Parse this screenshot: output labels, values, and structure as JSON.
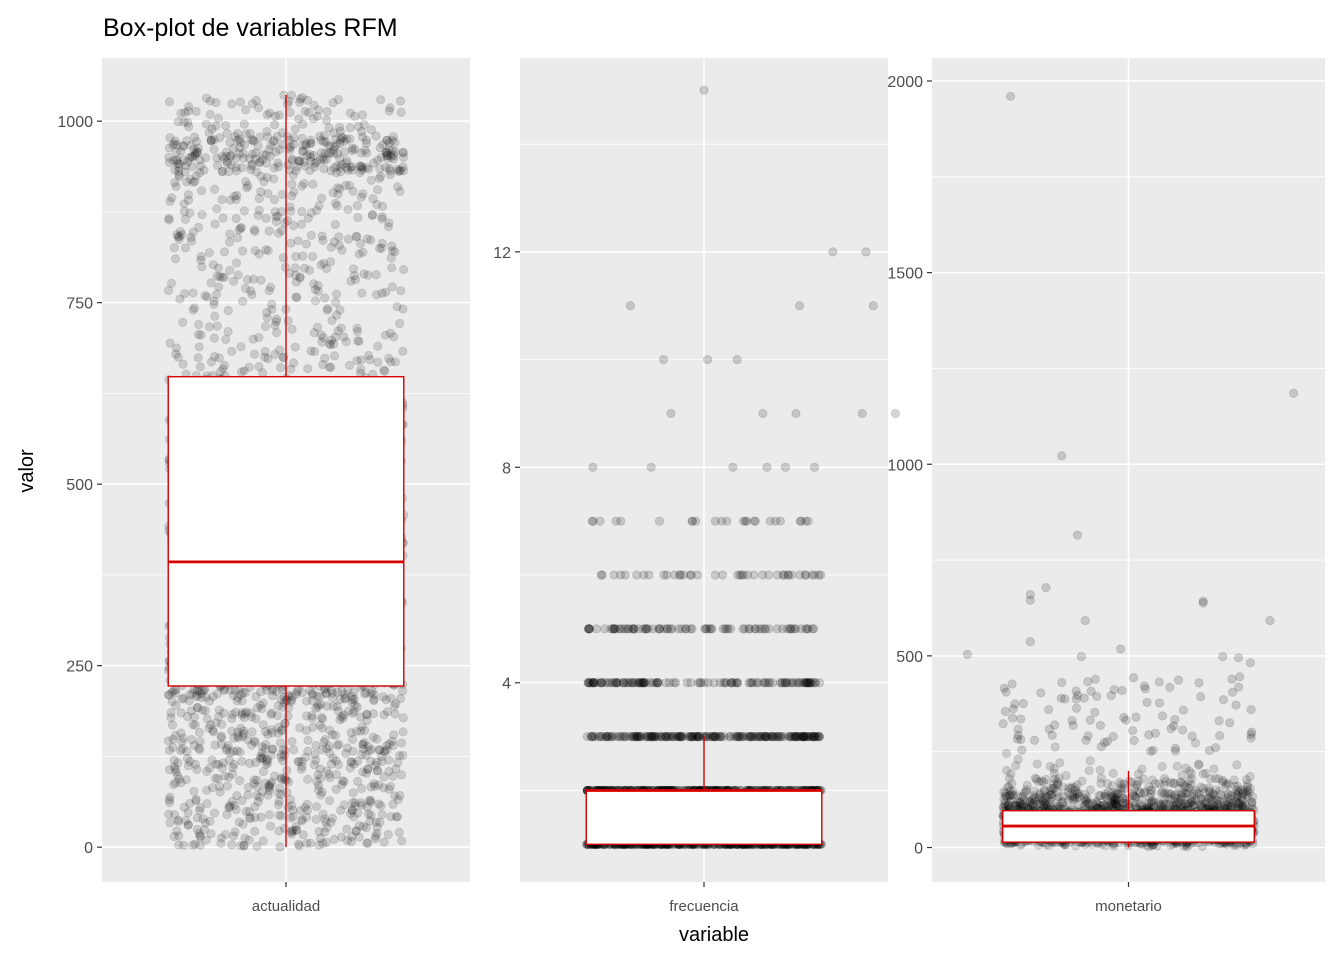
{
  "chart_data": {
    "type": "box",
    "title": "Box-plot de variables RFM",
    "xlabel": "variable",
    "ylabel": "valor",
    "colors": {
      "panel_bg": "#ebebeb",
      "grid": "#ffffff",
      "box_stroke": "#d40000",
      "points": "#000000",
      "tick_text": "#4d4d4d"
    },
    "panels": [
      {
        "category": "actualidad",
        "ylim": [
          -48,
          1087
        ],
        "yticks": [
          0,
          250,
          500,
          750,
          1000
        ],
        "box": {
          "whisker_low": 0,
          "q1": 222,
          "median": 393,
          "q3": 648,
          "whisker_high": 1036
        },
        "points_description": "dense jittered scatter spanning 0 to 1036",
        "outliers": []
      },
      {
        "category": "frecuencia",
        "ylim": [
          0.3,
          15.6
        ],
        "yticks": [
          4,
          8,
          12
        ],
        "box": {
          "whisker_low": 1,
          "q1": 1,
          "median": 2,
          "q3": 2,
          "whisker_high": 3
        },
        "points_description": "integer-valued jittered scatter",
        "outliers": [
          {
            "x_jitter": 0.5,
            "y": 15
          },
          {
            "x_jitter": 0.85,
            "y": 12
          },
          {
            "x_jitter": 0.94,
            "y": 12
          },
          {
            "x_jitter": 0.3,
            "y": 11
          },
          {
            "x_jitter": 0.96,
            "y": 11
          },
          {
            "x_jitter": 0.76,
            "y": 11
          },
          {
            "x_jitter": 0.39,
            "y": 10
          },
          {
            "x_jitter": 0.51,
            "y": 10
          },
          {
            "x_jitter": 0.59,
            "y": 10
          },
          {
            "x_jitter": 0.41,
            "y": 9
          },
          {
            "x_jitter": 0.66,
            "y": 9
          },
          {
            "x_jitter": 0.75,
            "y": 9
          },
          {
            "x_jitter": 0.93,
            "y": 9
          },
          {
            "x_jitter": 1.02,
            "y": 9
          }
        ]
      },
      {
        "category": "monetario",
        "ylim": [
          -90,
          2060
        ],
        "yticks": [
          0,
          500,
          1000,
          1500,
          2000
        ],
        "box": {
          "whisker_low": 0,
          "q1": 14,
          "median": 56,
          "q3": 96,
          "whisker_high": 200
        },
        "points_description": "dense jittered scatter concentrated below 300 with sparse outliers",
        "outliers": [
          {
            "x_jitter": 0.2,
            "y": 1960
          },
          {
            "x_jitter": 0.92,
            "y": 1185
          },
          {
            "x_jitter": 0.33,
            "y": 1022
          },
          {
            "x_jitter": 0.37,
            "y": 815
          },
          {
            "x_jitter": 0.29,
            "y": 678
          },
          {
            "x_jitter": 0.25,
            "y": 660
          },
          {
            "x_jitter": 0.25,
            "y": 645
          },
          {
            "x_jitter": 0.69,
            "y": 643
          },
          {
            "x_jitter": 0.69,
            "y": 638
          },
          {
            "x_jitter": 0.39,
            "y": 592
          },
          {
            "x_jitter": 0.86,
            "y": 592
          },
          {
            "x_jitter": 0.25,
            "y": 537
          },
          {
            "x_jitter": 0.48,
            "y": 518
          },
          {
            "x_jitter": 0.09,
            "y": 504
          },
          {
            "x_jitter": 0.38,
            "y": 498
          },
          {
            "x_jitter": 0.74,
            "y": 498
          },
          {
            "x_jitter": 0.78,
            "y": 495
          },
          {
            "x_jitter": 0.81,
            "y": 482
          }
        ]
      }
    ]
  }
}
